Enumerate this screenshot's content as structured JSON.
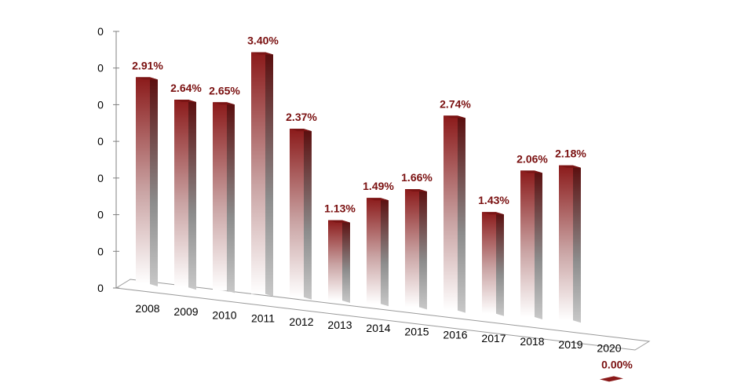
{
  "chart_data": {
    "type": "bar",
    "title": "",
    "xlabel": "",
    "ylabel": "",
    "categories": [
      "2008",
      "2009",
      "2010",
      "2011",
      "2012",
      "2013",
      "2014",
      "2015",
      "2016",
      "2017",
      "2018",
      "2019",
      "2020"
    ],
    "values": [
      2.91,
      2.64,
      2.65,
      3.4,
      2.37,
      1.13,
      1.49,
      1.66,
      2.74,
      1.43,
      2.06,
      2.18,
      0.0
    ],
    "data_labels": [
      "2.91%",
      "2.64%",
      "2.65%",
      "3.40%",
      "2.37%",
      "1.13%",
      "1.49%",
      "1.66%",
      "2.74%",
      "1.43%",
      "2.06%",
      "2.18%",
      "0.00%"
    ],
    "y_tick_labels": [
      "0",
      "0",
      "0",
      "0",
      "0",
      "0",
      "0",
      "0"
    ],
    "ylim": [
      0,
      3.5
    ],
    "grid": false,
    "legend": "none",
    "style": "3d-gradient",
    "colors": {
      "bar_top": "#8b1a1a",
      "bar_fade": "#ffffff",
      "bar_side": "#5a0d0d",
      "label": "#7a1010"
    }
  }
}
